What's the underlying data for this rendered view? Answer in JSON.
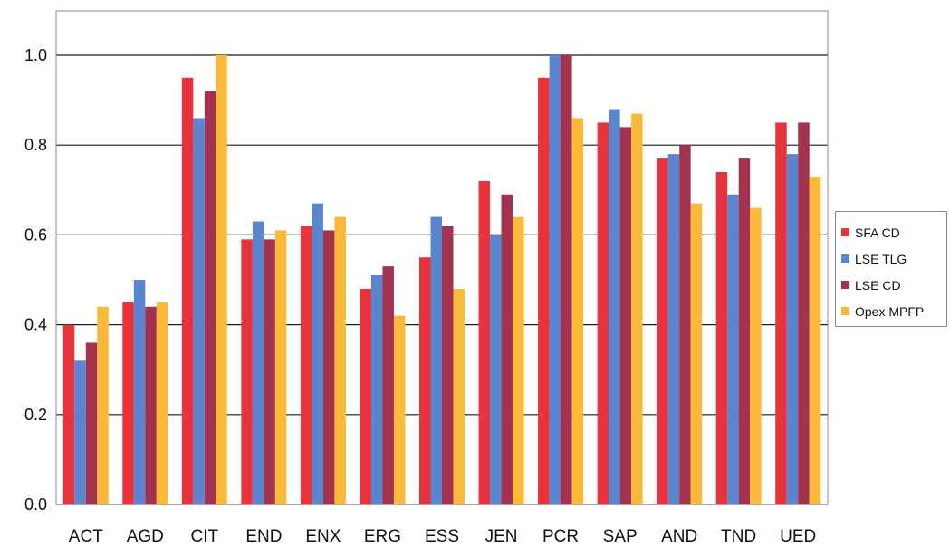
{
  "chart_data": {
    "type": "bar",
    "title": "",
    "xlabel": "",
    "ylabel": "",
    "ylim": [
      0.0,
      1.0
    ],
    "yticks": [
      "0.0",
      "0.2",
      "0.4",
      "0.6",
      "0.8",
      "1.0"
    ],
    "grid": "horizontal",
    "legend_position": "right",
    "categories": [
      "ACT",
      "AGD",
      "CIT",
      "END",
      "ENX",
      "ERG",
      "ESS",
      "JEN",
      "PCR",
      "SAP",
      "AND",
      "TND",
      "UED"
    ],
    "series": [
      {
        "name": "SFA CD",
        "color": "#e8333d",
        "values": [
          0.4,
          0.45,
          0.95,
          0.59,
          0.62,
          0.48,
          0.55,
          0.72,
          0.95,
          0.85,
          0.77,
          0.74,
          0.85
        ]
      },
      {
        "name": "LSE TLG",
        "color": "#5a86cf",
        "values": [
          0.32,
          0.5,
          0.86,
          0.63,
          0.67,
          0.51,
          0.64,
          0.6,
          1.0,
          0.88,
          0.78,
          0.69,
          0.78
        ]
      },
      {
        "name": "LSE CD",
        "color": "#a3324f",
        "values": [
          0.36,
          0.44,
          0.92,
          0.59,
          0.61,
          0.53,
          0.62,
          0.69,
          1.0,
          0.84,
          0.8,
          0.77,
          0.85
        ]
      },
      {
        "name": "Opex MPFP",
        "color": "#fbb93a",
        "values": [
          0.44,
          0.45,
          1.0,
          0.61,
          0.64,
          0.42,
          0.48,
          0.64,
          0.86,
          0.87,
          0.67,
          0.66,
          0.73
        ]
      }
    ]
  }
}
